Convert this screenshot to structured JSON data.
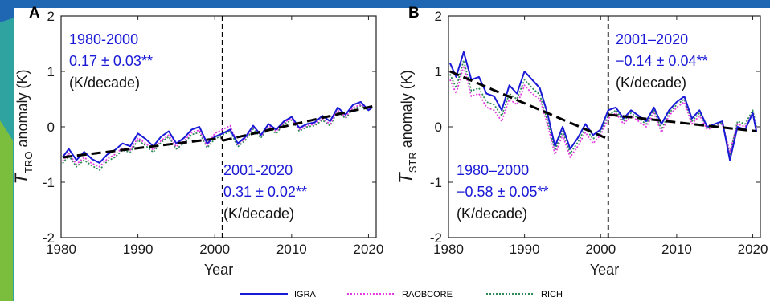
{
  "colors": {
    "frame_blue": "#1f67b3",
    "frame_teal": "#2ea3a0",
    "frame_green": "#7bbd3c",
    "igra": "#1a1ad6",
    "raobcore": "#e23ce0",
    "rich": "#2e8b57",
    "trend": "#000000"
  },
  "legend": [
    "IGRA",
    "RAOBCORE",
    "RICH"
  ],
  "chart_data": [
    {
      "type": "line",
      "panel": "A",
      "xlabel": "Year",
      "ylabel_main": "T",
      "ylabel_sub": "TRO",
      "ylabel_rest": " anomaly (K)",
      "xlim": [
        1980,
        2021
      ],
      "ylim": [
        -2,
        2
      ],
      "xticks": [
        1980,
        1990,
        2000,
        2010,
        2020
      ],
      "yticks": [
        -2,
        -1,
        0,
        1,
        2
      ],
      "breakpoint": 2001,
      "annotations": [
        {
          "lines": [
            "1980-2000",
            "0.17 ± 0.03**",
            "(K/decade)"
          ]
        },
        {
          "lines": [
            "2001-2020",
            "0.31 ± 0.02**",
            "(K/decade)"
          ]
        }
      ],
      "trend_segments": [
        {
          "x": [
            1980.2,
            2001
          ],
          "y": [
            -0.55,
            -0.2
          ]
        },
        {
          "x": [
            2001,
            2020.5
          ],
          "y": [
            -0.25,
            0.37
          ]
        }
      ],
      "x": [
        1980.2,
        1981,
        1982,
        1983,
        1984,
        1985,
        1986,
        1987,
        1988,
        1989,
        1990,
        1991,
        1992,
        1993,
        1994,
        1995,
        1996,
        1997,
        1998,
        1999,
        2000,
        2001,
        2002,
        2003,
        2004,
        2005,
        2006,
        2007,
        2008,
        2009,
        2010,
        2011,
        2012,
        2013,
        2014,
        2015,
        2016,
        2017,
        2018,
        2019,
        2020,
        2020.5
      ],
      "series": [
        {
          "name": "IGRA",
          "values": [
            -0.55,
            -0.4,
            -0.6,
            -0.45,
            -0.58,
            -0.65,
            -0.5,
            -0.42,
            -0.3,
            -0.35,
            -0.12,
            -0.22,
            -0.35,
            -0.18,
            -0.08,
            -0.3,
            -0.2,
            -0.05,
            0.0,
            -0.3,
            -0.18,
            -0.12,
            -0.05,
            -0.3,
            -0.18,
            0.02,
            -0.15,
            0.05,
            -0.05,
            0.1,
            0.18,
            -0.02,
            0.05,
            0.08,
            0.2,
            0.1,
            0.35,
            0.22,
            0.4,
            0.45,
            0.3,
            0.35
          ]
        },
        {
          "name": "RAOBCORE",
          "values": [
            -0.62,
            -0.48,
            -0.68,
            -0.55,
            -0.66,
            -0.72,
            -0.58,
            -0.5,
            -0.38,
            -0.42,
            -0.2,
            -0.3,
            -0.42,
            -0.25,
            -0.15,
            -0.36,
            -0.26,
            -0.1,
            -0.06,
            -0.34,
            -0.12,
            -0.05,
            0.02,
            -0.32,
            -0.2,
            0.0,
            -0.17,
            0.02,
            -0.08,
            0.08,
            0.15,
            -0.05,
            0.02,
            0.05,
            0.15,
            0.05,
            0.3,
            0.18,
            0.35,
            0.4,
            0.33,
            0.4
          ]
        },
        {
          "name": "RICH",
          "values": [
            -0.66,
            -0.52,
            -0.72,
            -0.6,
            -0.7,
            -0.78,
            -0.62,
            -0.55,
            -0.42,
            -0.46,
            -0.24,
            -0.34,
            -0.46,
            -0.28,
            -0.18,
            -0.4,
            -0.3,
            -0.14,
            -0.1,
            -0.38,
            -0.22,
            -0.15,
            -0.08,
            -0.36,
            -0.24,
            -0.04,
            -0.2,
            -0.02,
            -0.12,
            0.05,
            0.12,
            -0.08,
            0.0,
            0.02,
            0.12,
            0.02,
            0.28,
            0.15,
            0.33,
            0.38,
            0.3,
            0.38
          ]
        }
      ]
    },
    {
      "type": "line",
      "panel": "B",
      "xlabel": "Year",
      "ylabel_main": "T",
      "ylabel_sub": "STR",
      "ylabel_rest": " anomaly (K)",
      "xlim": [
        1980,
        2021
      ],
      "ylim": [
        -2,
        2
      ],
      "xticks": [
        1980,
        1990,
        2000,
        2010,
        2020
      ],
      "yticks": [
        -2,
        -1,
        0,
        1,
        2
      ],
      "breakpoint": 2001,
      "annotations": [
        {
          "lines": [
            "2001–2020",
            "−0.14 ± 0.04**",
            "(K/decade)"
          ]
        },
        {
          "lines": [
            "1980–2000",
            "−0.58 ± 0.05**",
            "(K/decade)"
          ]
        }
      ],
      "trend_segments": [
        {
          "x": [
            1980.2,
            2001
          ],
          "y": [
            1.0,
            -0.22
          ]
        },
        {
          "x": [
            2001,
            2020.5
          ],
          "y": [
            0.22,
            -0.08
          ]
        }
      ],
      "x": [
        1980.2,
        1981,
        1982,
        1983,
        1984,
        1985,
        1986,
        1987,
        1988,
        1989,
        1990,
        1991,
        1992,
        1993,
        1994,
        1995,
        1996,
        1997,
        1998,
        1999,
        2000,
        2001,
        2002,
        2003,
        2004,
        2005,
        2006,
        2007,
        2008,
        2009,
        2010,
        2011,
        2012,
        2013,
        2014,
        2015,
        2016,
        2017,
        2018,
        2019,
        2020,
        2020.5
      ],
      "series": [
        {
          "name": "IGRA",
          "values": [
            1.15,
            0.9,
            1.35,
            0.85,
            0.9,
            0.6,
            0.55,
            0.3,
            0.75,
            0.6,
            1.0,
            0.85,
            0.7,
            0.25,
            -0.35,
            0.0,
            -0.4,
            -0.2,
            0.05,
            -0.15,
            -0.05,
            0.3,
            0.35,
            0.15,
            0.3,
            0.2,
            0.1,
            0.35,
            0.05,
            0.3,
            0.45,
            0.55,
            0.15,
            0.3,
            0.0,
            0.05,
            0.1,
            -0.6,
            0.0,
            -0.05,
            0.25,
            -0.1
          ]
        },
        {
          "name": "RAOBCORE",
          "values": [
            0.85,
            0.6,
            1.1,
            0.55,
            0.6,
            0.35,
            0.3,
            0.1,
            0.5,
            0.4,
            0.75,
            0.6,
            0.5,
            0.05,
            -0.5,
            -0.15,
            -0.55,
            -0.35,
            -0.1,
            -0.3,
            -0.15,
            0.15,
            0.25,
            0.05,
            0.2,
            0.1,
            0.0,
            0.25,
            -0.1,
            0.2,
            0.35,
            0.45,
            0.05,
            0.2,
            -0.05,
            0.0,
            0.05,
            -0.45,
            0.05,
            0.0,
            0.25,
            -0.05
          ]
        },
        {
          "name": "RICH",
          "values": [
            0.95,
            0.7,
            1.2,
            0.65,
            0.7,
            0.45,
            0.4,
            0.2,
            0.6,
            0.5,
            0.85,
            0.7,
            0.58,
            0.12,
            -0.42,
            -0.08,
            -0.48,
            -0.28,
            -0.02,
            -0.22,
            -0.1,
            0.2,
            0.3,
            0.1,
            0.25,
            0.15,
            0.05,
            0.3,
            -0.05,
            0.25,
            0.4,
            0.5,
            0.1,
            0.25,
            -0.02,
            0.02,
            0.08,
            -0.5,
            0.1,
            0.05,
            0.3,
            0.0
          ]
        }
      ]
    }
  ]
}
